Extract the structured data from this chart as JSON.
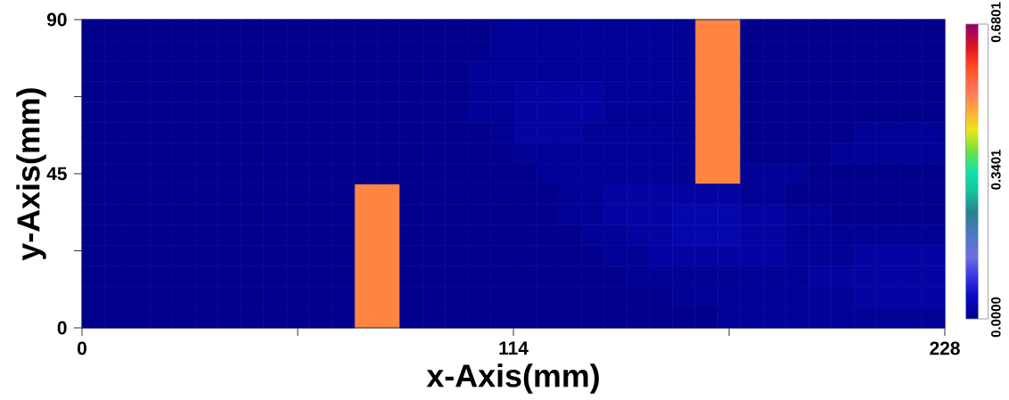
{
  "chart_data": {
    "type": "scatter",
    "xlabel": "x-Axis(mm)",
    "ylabel": "y-Axis(mm)",
    "xlim": [
      0,
      228
    ],
    "ylim": [
      0,
      90
    ],
    "xticks": [
      0,
      {
        "value": 57,
        "label": null
      },
      114,
      {
        "value": 171,
        "label": null
      },
      228
    ],
    "yticks": [
      0,
      {
        "value": 22.5,
        "label": null
      },
      45,
      {
        "value": 67.5,
        "label": null
      },
      90
    ],
    "marker": "square",
    "clim": [
      0,
      0.6801
    ],
    "cticks": [
      {
        "value": 0,
        "label": "0.0000"
      },
      {
        "value": 0.3401,
        "label": "0.3401"
      },
      {
        "value": 0.6801,
        "label": "0.6801"
      }
    ],
    "x": [
      3,
      9,
      15,
      21,
      27,
      33,
      39,
      45,
      51,
      57,
      63,
      69,
      75,
      81,
      87,
      93,
      99,
      105,
      111,
      117,
      123,
      129,
      135,
      141,
      147,
      153,
      159,
      177,
      183,
      189,
      195,
      201,
      207,
      213,
      219,
      225,
      3,
      9,
      15,
      21,
      27,
      33,
      39,
      45,
      51,
      57,
      63,
      69,
      75,
      81,
      87,
      93,
      99,
      105,
      111,
      117,
      123,
      129,
      135,
      141,
      147,
      153,
      159,
      177,
      183,
      189,
      195,
      201,
      207,
      213,
      219,
      225,
      3,
      9,
      15,
      21,
      27,
      33,
      39,
      45,
      51,
      57,
      63,
      69,
      75,
      81,
      87,
      93,
      99,
      105,
      111,
      117,
      123,
      129,
      135,
      141,
      147,
      153,
      159,
      177,
      183,
      189,
      195,
      201,
      207,
      213,
      219,
      225,
      3,
      9,
      15,
      21,
      27,
      33,
      39,
      45,
      51,
      57,
      63,
      69,
      75,
      81,
      87,
      93,
      99,
      105,
      111,
      117,
      123,
      129,
      135,
      141,
      147,
      153,
      159,
      177,
      183,
      189,
      195,
      201,
      207,
      213,
      219,
      225,
      3,
      9,
      15,
      21,
      27,
      33,
      39,
      45,
      51,
      57,
      63,
      69,
      75,
      81,
      87,
      93,
      99,
      105,
      111,
      117,
      123,
      129,
      135,
      141,
      147,
      153,
      159,
      177,
      183,
      189,
      195,
      201,
      207,
      213,
      219,
      225,
      3,
      9,
      15,
      21,
      27,
      33,
      39,
      45,
      51,
      57,
      63,
      69,
      75,
      81,
      87,
      93,
      99,
      105,
      111,
      117,
      123,
      129,
      135,
      141,
      147,
      153,
      159,
      177,
      183,
      189,
      195,
      201,
      207,
      213,
      219,
      225,
      3,
      9,
      15,
      21,
      27,
      33,
      39,
      45,
      51,
      57,
      63,
      69,
      75,
      81,
      87,
      93,
      99,
      105,
      111,
      117,
      123,
      129,
      135,
      141,
      147,
      153,
      159,
      177,
      183,
      189,
      195,
      201,
      207,
      213,
      219,
      225,
      3,
      9,
      15,
      21,
      27,
      33,
      39,
      45,
      51,
      57,
      63,
      69,
      75,
      81,
      87,
      93,
      99,
      105,
      111,
      117,
      123,
      129,
      135,
      141,
      147,
      153,
      159,
      177,
      183,
      189,
      195,
      201,
      207,
      213,
      219,
      225,
      3,
      9,
      15,
      21,
      27,
      33,
      39,
      45,
      51,
      57,
      63,
      69,
      87,
      93,
      99,
      105,
      111,
      117,
      123,
      129,
      135,
      141,
      147,
      153,
      159,
      165,
      171,
      177,
      183,
      189,
      195,
      201,
      207,
      213,
      219,
      225,
      3,
      9,
      15,
      21,
      27,
      33,
      39,
      45,
      51,
      57,
      63,
      69,
      87,
      93,
      99,
      105,
      111,
      117,
      123,
      129,
      135,
      141,
      147,
      153,
      159,
      165,
      171,
      177,
      183,
      189,
      195,
      201,
      207,
      213,
      219,
      225,
      3,
      9,
      15,
      21,
      27,
      33,
      39,
      45,
      51,
      57,
      63,
      69,
      87,
      93,
      99,
      105,
      111,
      117,
      123,
      129,
      135,
      141,
      147,
      153,
      159,
      165,
      171,
      177,
      183,
      189,
      195,
      201,
      207,
      213,
      219,
      225,
      3,
      9,
      15,
      21,
      27,
      33,
      39,
      45,
      51,
      57,
      63,
      69,
      87,
      93,
      99,
      105,
      111,
      117,
      123,
      129,
      135,
      141,
      147,
      153,
      159,
      165,
      171,
      177,
      183,
      189,
      195,
      201,
      207,
      213,
      219,
      225,
      3,
      9,
      15,
      21,
      27,
      33,
      39,
      45,
      51,
      57,
      63,
      69,
      87,
      93,
      99,
      105,
      111,
      117,
      123,
      129,
      135,
      141,
      147,
      153,
      159,
      165,
      171,
      177,
      183,
      189,
      195,
      201,
      207,
      213,
      219,
      225,
      3,
      9,
      15,
      21,
      27,
      33,
      39,
      45,
      51,
      57,
      63,
      69,
      87,
      93,
      99,
      105,
      111,
      117,
      123,
      129,
      135,
      141,
      147,
      153,
      159,
      165,
      171,
      177,
      183,
      189,
      195,
      201,
      207,
      213,
      219,
      225,
      3,
      9,
      15,
      21,
      27,
      33,
      39,
      45,
      51,
      57,
      63,
      69,
      87,
      93,
      99,
      105,
      111,
      117,
      123,
      129,
      135,
      141,
      147,
      153,
      159,
      165,
      171,
      177,
      183,
      189,
      195,
      201,
      207,
      213,
      219,
      225
    ],
    "values": [
      87,
      87,
      87,
      87,
      87,
      87,
      87,
      87,
      87,
      87,
      87,
      87,
      87,
      87,
      87,
      87,
      87,
      87,
      87,
      87,
      87,
      87,
      87,
      87,
      87,
      87,
      87,
      87,
      87,
      87,
      87,
      87,
      87,
      87,
      87,
      87,
      81,
      81,
      81,
      81,
      81,
      81,
      81,
      81,
      81,
      81,
      81,
      81,
      81,
      81,
      81,
      81,
      81,
      81,
      81,
      81,
      81,
      81,
      81,
      81,
      81,
      81,
      81,
      81,
      81,
      81,
      81,
      81,
      81,
      81,
      81,
      81,
      75,
      75,
      75,
      75,
      75,
      75,
      75,
      75,
      75,
      75,
      75,
      75,
      75,
      75,
      75,
      75,
      75,
      75,
      75,
      75,
      75,
      75,
      75,
      75,
      75,
      75,
      75,
      75,
      75,
      75,
      75,
      75,
      75,
      75,
      75,
      75,
      69,
      69,
      69,
      69,
      69,
      69,
      69,
      69,
      69,
      69,
      69,
      69,
      69,
      69,
      69,
      69,
      69,
      69,
      69,
      69,
      69,
      69,
      69,
      69,
      69,
      69,
      69,
      69,
      69,
      69,
      69,
      69,
      69,
      69,
      69,
      69,
      63,
      63,
      63,
      63,
      63,
      63,
      63,
      63,
      63,
      63,
      63,
      63,
      63,
      63,
      63,
      63,
      63,
      63,
      63,
      63,
      63,
      63,
      63,
      63,
      63,
      63,
      63,
      63,
      63,
      63,
      63,
      63,
      63,
      63,
      63,
      63,
      57,
      57,
      57,
      57,
      57,
      57,
      57,
      57,
      57,
      57,
      57,
      57,
      57,
      57,
      57,
      57,
      57,
      57,
      57,
      57,
      57,
      57,
      57,
      57,
      57,
      57,
      57,
      57,
      57,
      57,
      57,
      57,
      57,
      57,
      57,
      57,
      51,
      51,
      51,
      51,
      51,
      51,
      51,
      51,
      51,
      51,
      51,
      51,
      51,
      51,
      51,
      51,
      51,
      51,
      51,
      51,
      51,
      51,
      51,
      51,
      51,
      51,
      51,
      51,
      51,
      51,
      51,
      51,
      51,
      51,
      51,
      51,
      45,
      45,
      45,
      45,
      45,
      45,
      45,
      45,
      45,
      45,
      45,
      45,
      45,
      45,
      45,
      45,
      45,
      45,
      45,
      45,
      45,
      45,
      45,
      45,
      45,
      45,
      45,
      45,
      45,
      45,
      45,
      45,
      45,
      45,
      45,
      45,
      39,
      39,
      39,
      39,
      39,
      39,
      39,
      39,
      39,
      39,
      39,
      39,
      39,
      39,
      39,
      39,
      39,
      39,
      39,
      39,
      39,
      39,
      39,
      39,
      39,
      39,
      39,
      39,
      39,
      39,
      39,
      39,
      39,
      39,
      39,
      39,
      33,
      33,
      33,
      33,
      33,
      33,
      33,
      33,
      33,
      33,
      33,
      33,
      33,
      33,
      33,
      33,
      33,
      33,
      33,
      33,
      33,
      33,
      33,
      33,
      33,
      33,
      33,
      33,
      33,
      33,
      33,
      33,
      33,
      33,
      33,
      33,
      27,
      27,
      27,
      27,
      27,
      27,
      27,
      27,
      27,
      27,
      27,
      27,
      27,
      27,
      27,
      27,
      27,
      27,
      27,
      27,
      27,
      27,
      27,
      27,
      27,
      27,
      27,
      27,
      27,
      27,
      27,
      27,
      27,
      27,
      27,
      27,
      21,
      21,
      21,
      21,
      21,
      21,
      21,
      21,
      21,
      21,
      21,
      21,
      21,
      21,
      21,
      21,
      21,
      21,
      21,
      21,
      21,
      21,
      21,
      21,
      21,
      21,
      21,
      21,
      21,
      21,
      21,
      21,
      21,
      21,
      21,
      21,
      15,
      15,
      15,
      15,
      15,
      15,
      15,
      15,
      15,
      15,
      15,
      15,
      15,
      15,
      15,
      15,
      15,
      15,
      15,
      15,
      15,
      15,
      15,
      15,
      15,
      15,
      15,
      15,
      15,
      15,
      15,
      15,
      15,
      15,
      15,
      15,
      9,
      9,
      9,
      9,
      9,
      9,
      9,
      9,
      9,
      9,
      9,
      9,
      9,
      9,
      9,
      9,
      9,
      9,
      9,
      9,
      9,
      9,
      9,
      9,
      9,
      9,
      9,
      9,
      9,
      9,
      9,
      9,
      9,
      9,
      9,
      9,
      3,
      3,
      3,
      3,
      3,
      3,
      3,
      3,
      3,
      3,
      3,
      3,
      3,
      3,
      3,
      3,
      3,
      3,
      3,
      3,
      3,
      3,
      3,
      3,
      3,
      3,
      3,
      3,
      3,
      3,
      3,
      3,
      3,
      3,
      3,
      3
    ],
    "cvalues": [
      0,
      0,
      0,
      0,
      0,
      0,
      0,
      0,
      0,
      0,
      0,
      0,
      0,
      0,
      0,
      0,
      0,
      0,
      0.01,
      0.01,
      0.01,
      0.01,
      0.01,
      0.01,
      0.01,
      0.01,
      0.01,
      0,
      0,
      0,
      0,
      0,
      0,
      0,
      0,
      0,
      0,
      0,
      0,
      0,
      0,
      0,
      0,
      0,
      0,
      0,
      0,
      0,
      0,
      0,
      0,
      0,
      0,
      0,
      0.01,
      0.01,
      0.01,
      0.01,
      0.01,
      0.01,
      0.01,
      0.01,
      0.01,
      0,
      0,
      0,
      0,
      0,
      0,
      0,
      0,
      0,
      0,
      0,
      0,
      0,
      0,
      0,
      0,
      0,
      0,
      0,
      0,
      0,
      0,
      0,
      0,
      0,
      0,
      0.01,
      0.01,
      0.01,
      0.01,
      0.01,
      0.01,
      0.01,
      0.01,
      0.01,
      0.01,
      0,
      0,
      0,
      0,
      0,
      0,
      0,
      0,
      0,
      0,
      0,
      0,
      0,
      0,
      0,
      0,
      0,
      0,
      0,
      0,
      0,
      0,
      0,
      0,
      0,
      0,
      0.01,
      0.01,
      0.02,
      0.02,
      0.02,
      0.02,
      0.01,
      0.01,
      0.01,
      0.01,
      0,
      0,
      0,
      0,
      0,
      0,
      0,
      0,
      0,
      0,
      0,
      0,
      0,
      0,
      0,
      0,
      0,
      0,
      0,
      0,
      0,
      0,
      0,
      0,
      0,
      0,
      0.01,
      0.01,
      0.02,
      0.02,
      0.02,
      0.02,
      0.01,
      0.01,
      0.01,
      0.01,
      0,
      0,
      0,
      0,
      0,
      0,
      0,
      0,
      0,
      0,
      0,
      0,
      0,
      0,
      0,
      0,
      0,
      0,
      0,
      0,
      0,
      0,
      0,
      0,
      0,
      0,
      0,
      0.01,
      0.02,
      0.02,
      0.02,
      0.01,
      0.01,
      0.01,
      0.01,
      0.01,
      0,
      0,
      0,
      0,
      0,
      0.01,
      0.01,
      0.01,
      0.01,
      0,
      0,
      0,
      0,
      0,
      0,
      0,
      0,
      0,
      0,
      0,
      0,
      0,
      0,
      0,
      0,
      0,
      0,
      0,
      0.01,
      0.01,
      0.01,
      0.01,
      0.01,
      0.01,
      0.01,
      0.01,
      0,
      0,
      0,
      0,
      0.01,
      0.01,
      0.01,
      0.01,
      0.01,
      0,
      0,
      0,
      0,
      0,
      0,
      0,
      0,
      0,
      0,
      0,
      0,
      0,
      0,
      0,
      0,
      0,
      0,
      0,
      0,
      0.01,
      0.01,
      0.01,
      0.01,
      0.01,
      0.01,
      0.01,
      0.01,
      0.01,
      0.01,
      0,
      0,
      0,
      0,
      0,
      0,
      0,
      0,
      0,
      0,
      0,
      0,
      0,
      0,
      0,
      0,
      0,
      0,
      0,
      0,
      0,
      0,
      0,
      0,
      0,
      0.01,
      0.01,
      0.02,
      0.02,
      0.02,
      0.02,
      0.02,
      0.02,
      0.01,
      0.01,
      0,
      0,
      0,
      0,
      0,
      0,
      0,
      0,
      0,
      0,
      0,
      0,
      0,
      0,
      0,
      0,
      0,
      0,
      0,
      0,
      0,
      0,
      0,
      0,
      0,
      0,
      0.01,
      0.01,
      0.02,
      0.02,
      0.02,
      0.03,
      0.03,
      0.03,
      0.02,
      0.02,
      0.01,
      0.01,
      0,
      0,
      0,
      0,
      0,
      0,
      0,
      0,
      0,
      0,
      0,
      0,
      0,
      0,
      0,
      0,
      0,
      0,
      0,
      0,
      0,
      0,
      0,
      0,
      0,
      0.01,
      0.01,
      0.02,
      0.02,
      0.03,
      0.03,
      0.03,
      0.02,
      0.02,
      0.01,
      0.01,
      0.01,
      0.01,
      0.01,
      0.01,
      0.01,
      0,
      0,
      0,
      0,
      0,
      0,
      0,
      0,
      0,
      0,
      0,
      0,
      0,
      0,
      0,
      0,
      0,
      0,
      0,
      0,
      0,
      0.01,
      0.01,
      0.02,
      0.02,
      0.02,
      0.02,
      0.02,
      0.02,
      0.01,
      0.01,
      0.01,
      0.02,
      0.02,
      0.02,
      0.02,
      0,
      0,
      0,
      0,
      0,
      0,
      0,
      0,
      0,
      0,
      0,
      0,
      0,
      0,
      0,
      0,
      0,
      0,
      0,
      0,
      0,
      0,
      0.01,
      0.01,
      0.01,
      0.01,
      0.01,
      0.01,
      0.01,
      0.01,
      0.02,
      0.02,
      0.02,
      0.02,
      0.02,
      0.02,
      0,
      0,
      0,
      0,
      0,
      0,
      0,
      0,
      0,
      0,
      0,
      0,
      0,
      0,
      0,
      0,
      0,
      0,
      0,
      0,
      0,
      0,
      0,
      0,
      0.01,
      0.01,
      0.01,
      0.01,
      0.01,
      0.01,
      0.01,
      0.01,
      0.02,
      0.02,
      0.02,
      0.02,
      0,
      0,
      0,
      0,
      0,
      0,
      0,
      0,
      0,
      0,
      0,
      0,
      0,
      0,
      0,
      0,
      0,
      0,
      0,
      0,
      0,
      0,
      0,
      0,
      0,
      0,
      0.01,
      0.01,
      0.01,
      0.01,
      0.01,
      0.01,
      0.01,
      0.01,
      0.01,
      0.01
    ],
    "colors": [
      "#00008c",
      "#00008c",
      "#00008c",
      "#00008c",
      "#00008c",
      "#00008c",
      "#00008c",
      "#00008c",
      "#00008c",
      "#00008c",
      "#00008c",
      "#00008c",
      "#00008c",
      "#00008c",
      "#00008c",
      "#00008c",
      "#00008c",
      "#00008c",
      "#020297",
      "#020297",
      "#020297",
      "#020297",
      "#020297",
      "#020297",
      "#020297",
      "#020297",
      "#020297",
      "#00008c",
      "#00008c",
      "#00008c",
      "#00008c",
      "#00008c",
      "#00008c",
      "#00008c",
      "#00008c",
      "#00008c",
      "#00008c",
      "#00008c",
      "#00008c",
      "#00008c",
      "#00008c",
      "#00008c",
      "#00008c",
      "#00008c",
      "#00008c",
      "#00008c",
      "#00008c",
      "#00008c",
      "#00008c",
      "#00008c",
      "#00008c",
      "#00008c",
      "#00008c",
      "#00008c",
      "#020297",
      "#020297",
      "#020297",
      "#020297",
      "#020297",
      "#020297",
      "#020297",
      "#020297",
      "#020297",
      "#00008c",
      "#00008c",
      "#00008c",
      "#00008c",
      "#00008c",
      "#00008c",
      "#00008c",
      "#00008c",
      "#00008c",
      "#00008c",
      "#00008c",
      "#00008c",
      "#00008c",
      "#00008c",
      "#00008c",
      "#00008c",
      "#00008c",
      "#00008c",
      "#00008c",
      "#00008c",
      "#00008c",
      "#00008c",
      "#00008c",
      "#00008c",
      "#00008c",
      "#00008c",
      "#020297",
      "#020297",
      "#020297",
      "#020297",
      "#020297",
      "#020297",
      "#020297",
      "#020297",
      "#020297",
      "#020297",
      "#00008c",
      "#00008c",
      "#00008c",
      "#00008c",
      "#00008c",
      "#00008c",
      "#00008c",
      "#00008c",
      "#00008c",
      "#00008c",
      "#00008c",
      "#00008c",
      "#00008c",
      "#00008c",
      "#00008c",
      "#00008c",
      "#00008c",
      "#00008c",
      "#00008c",
      "#00008c",
      "#00008c",
      "#00008c",
      "#00008c",
      "#00008c",
      "#00008c",
      "#00008c",
      "#020297",
      "#020297",
      "#0404a2",
      "#0404a2",
      "#0404a2",
      "#0404a2",
      "#020297",
      "#020297",
      "#020297",
      "#020297",
      "#00008c",
      "#00008c",
      "#00008c",
      "#00008c",
      "#00008c",
      "#00008c",
      "#00008c",
      "#00008c",
      "#00008c",
      "#00008c",
      "#00008c",
      "#00008c",
      "#00008c",
      "#00008c",
      "#00008c",
      "#00008c",
      "#00008c",
      "#00008c",
      "#00008c",
      "#00008c",
      "#00008c",
      "#00008c",
      "#00008c",
      "#00008c",
      "#00008c",
      "#00008c",
      "#020297",
      "#020297",
      "#0404a2",
      "#0404a2",
      "#0404a2",
      "#0404a2",
      "#020297",
      "#020297",
      "#020297",
      "#020297",
      "#00008c",
      "#00008c",
      "#00008c",
      "#00008c",
      "#00008c",
      "#00008c",
      "#00008c",
      "#00008c",
      "#00008c",
      "#00008c",
      "#00008c",
      "#00008c",
      "#00008c",
      "#00008c",
      "#00008c",
      "#00008c",
      "#00008c",
      "#00008c",
      "#00008c",
      "#00008c",
      "#00008c",
      "#00008c",
      "#00008c",
      "#00008c",
      "#00008c",
      "#00008c",
      "#00008c",
      "#020297",
      "#0404a2",
      "#0404a2",
      "#0404a2",
      "#020297",
      "#020297",
      "#020297",
      "#020297",
      "#020297",
      "#00008c",
      "#00008c",
      "#00008c",
      "#00008c",
      "#00008c",
      "#020297",
      "#020297",
      "#020297",
      "#020297",
      "#00008c",
      "#00008c",
      "#00008c",
      "#00008c",
      "#00008c",
      "#00008c",
      "#00008c",
      "#00008c",
      "#00008c",
      "#00008c",
      "#00008c",
      "#00008c",
      "#00008c",
      "#00008c",
      "#00008c",
      "#00008c",
      "#00008c",
      "#00008c",
      "#00008c",
      "#020297",
      "#020297",
      "#020297",
      "#020297",
      "#020297",
      "#020297",
      "#020297",
      "#020297",
      "#00008c",
      "#00008c",
      "#00008c",
      "#00008c",
      "#020297",
      "#020297",
      "#020297",
      "#020297",
      "#020297",
      "#00008c",
      "#00008c",
      "#00008c",
      "#00008c",
      "#00008c",
      "#00008c",
      "#00008c",
      "#00008c",
      "#00008c",
      "#00008c",
      "#00008c",
      "#00008c",
      "#00008c",
      "#00008c",
      "#00008c",
      "#00008c",
      "#00008c",
      "#00008c",
      "#00008c",
      "#00008c",
      "#020297",
      "#020297",
      "#020297",
      "#020297",
      "#020297",
      "#020297",
      "#020297",
      "#020297",
      "#020297",
      "#020297",
      "#00008c",
      "#00008c",
      "#00008c",
      "#00008c",
      "#00008c",
      "#00008c",
      "#00008c",
      "#00008c",
      "#00008c",
      "#00008c",
      "#00008c",
      "#00008c",
      "#00008c",
      "#00008c",
      "#00008c",
      "#00008c",
      "#00008c",
      "#00008c",
      "#00008c",
      "#00008c",
      "#00008c",
      "#00008c",
      "#00008c",
      "#00008c",
      "#00008c",
      "#020297",
      "#020297",
      "#0404a2",
      "#0404a2",
      "#0404a2",
      "#0404a2",
      "#0404a2",
      "#0404a2",
      "#020297",
      "#020297",
      "#00008c",
      "#00008c",
      "#00008c",
      "#00008c",
      "#00008c",
      "#00008c",
      "#00008c",
      "#00008c",
      "#00008c",
      "#00008c",
      "#00008c",
      "#00008c",
      "#00008c",
      "#00008c",
      "#00008c",
      "#00008c",
      "#00008c",
      "#00008c",
      "#00008c",
      "#00008c",
      "#00008c",
      "#00008c",
      "#00008c",
      "#00008c",
      "#00008c",
      "#00008c",
      "#020297",
      "#020297",
      "#0404a2",
      "#0404a2",
      "#0404a2",
      "#0606ad",
      "#0606ad",
      "#0606ad",
      "#0404a2",
      "#0404a2",
      "#020297",
      "#020297",
      "#00008c",
      "#00008c",
      "#00008c",
      "#00008c",
      "#00008c",
      "#00008c",
      "#00008c",
      "#00008c",
      "#00008c",
      "#00008c",
      "#00008c",
      "#00008c",
      "#00008c",
      "#00008c",
      "#00008c",
      "#00008c",
      "#00008c",
      "#00008c",
      "#00008c",
      "#00008c",
      "#00008c",
      "#00008c",
      "#00008c",
      "#00008c",
      "#00008c",
      "#020297",
      "#020297",
      "#0404a2",
      "#0404a2",
      "#0606ad",
      "#0606ad",
      "#0606ad",
      "#0404a2",
      "#0404a2",
      "#020297",
      "#020297",
      "#020297",
      "#020297",
      "#020297",
      "#020297",
      "#020297",
      "#00008c",
      "#00008c",
      "#00008c",
      "#00008c",
      "#00008c",
      "#00008c",
      "#00008c",
      "#00008c",
      "#00008c",
      "#00008c",
      "#00008c",
      "#00008c",
      "#00008c",
      "#00008c",
      "#00008c",
      "#00008c",
      "#00008c",
      "#00008c",
      "#00008c",
      "#00008c",
      "#00008c",
      "#020297",
      "#020297",
      "#0404a2",
      "#0404a2",
      "#0404a2",
      "#0404a2",
      "#0404a2",
      "#0404a2",
      "#020297",
      "#020297",
      "#020297",
      "#0404a2",
      "#0404a2",
      "#0404a2",
      "#0404a2",
      "#00008c",
      "#00008c",
      "#00008c",
      "#00008c",
      "#00008c",
      "#00008c",
      "#00008c",
      "#00008c",
      "#00008c",
      "#00008c",
      "#00008c",
      "#00008c",
      "#00008c",
      "#00008c",
      "#00008c",
      "#00008c",
      "#00008c",
      "#00008c",
      "#00008c",
      "#00008c",
      "#00008c",
      "#00008c",
      "#020297",
      "#020297",
      "#020297",
      "#020297",
      "#020297",
      "#020297",
      "#020297",
      "#020297",
      "#0404a2",
      "#0404a2",
      "#0404a2",
      "#0404a2",
      "#0404a2",
      "#0404a2",
      "#00008c",
      "#00008c",
      "#00008c",
      "#00008c",
      "#00008c",
      "#00008c",
      "#00008c",
      "#00008c",
      "#00008c",
      "#00008c",
      "#00008c",
      "#00008c",
      "#00008c",
      "#00008c",
      "#00008c",
      "#00008c",
      "#00008c",
      "#00008c",
      "#00008c",
      "#00008c",
      "#00008c",
      "#00008c",
      "#00008c",
      "#00008c",
      "#020297",
      "#020297",
      "#020297",
      "#020297",
      "#020297",
      "#020297",
      "#020297",
      "#020297",
      "#0404a2",
      "#0404a2",
      "#0404a2",
      "#0404a2",
      "#00008c",
      "#00008c",
      "#00008c",
      "#00008c",
      "#00008c",
      "#00008c",
      "#00008c",
      "#00008c",
      "#00008c",
      "#00008c",
      "#00008c",
      "#00008c",
      "#00008c",
      "#00008c",
      "#00008c",
      "#00008c",
      "#00008c",
      "#00008c",
      "#00008c",
      "#00008c",
      "#00008c",
      "#00008c",
      "#00008c",
      "#00008c",
      "#00008c",
      "#00008c",
      "#020297",
      "#020297",
      "#020297",
      "#020297",
      "#020297",
      "#020297",
      "#020297",
      "#020297",
      "#020297",
      "#020297"
    ],
    "series": [
      {
        "type": "bar",
        "x": [
          78,
          168
        ],
        "base": [
          0,
          42
        ],
        "values": [
          42,
          48
        ],
        "color": "#ff8540"
      }
    ]
  }
}
